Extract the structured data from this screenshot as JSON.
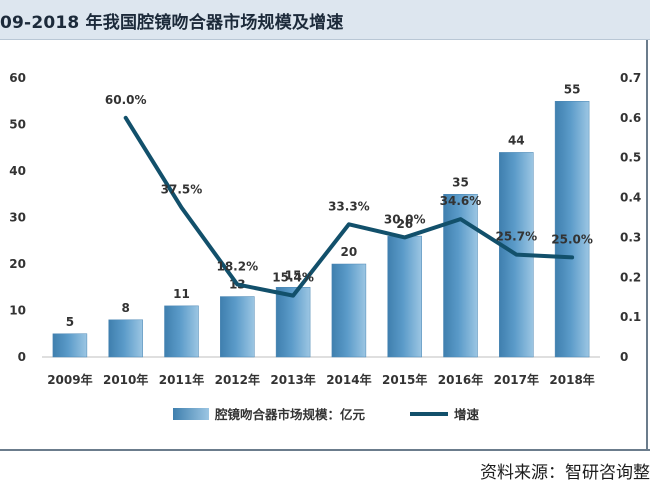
{
  "header": {
    "title": "09-2018 年我国腔镜吻合器市场规模及增速"
  },
  "footer": {
    "source": "资料来源：智研咨询整"
  },
  "colors": {
    "bar_fill": "#5b9bc9",
    "line": "#12506b",
    "axis_text": "#333333",
    "title_bg": "#dde6ef"
  },
  "chart_data": {
    "type": "bar",
    "categories": [
      "2009年",
      "2010年",
      "2011年",
      "2012年",
      "2013年",
      "2014年",
      "2015年",
      "2016年",
      "2017年",
      "2018年"
    ],
    "series": [
      {
        "name": "腔镜吻合器市场规模：亿元",
        "type": "bar",
        "axis": "left",
        "values": [
          5,
          8,
          11,
          13,
          15,
          20,
          26,
          35,
          44,
          55
        ],
        "labels": [
          "5",
          "8",
          "11",
          "13",
          "15",
          "20",
          "26",
          "35",
          "44",
          "55"
        ]
      },
      {
        "name": "增速",
        "type": "line",
        "axis": "right",
        "values": [
          null,
          0.6,
          0.375,
          0.182,
          0.154,
          0.333,
          0.3,
          0.346,
          0.257,
          0.25
        ],
        "labels": [
          "",
          "60.0%",
          "37.5%",
          "18.2%",
          "15.4%",
          "33.3%",
          "30.0%",
          "34.6%",
          "25.7%",
          "25.0%"
        ]
      }
    ],
    "y_left": {
      "min": 0,
      "max": 60,
      "ticks": [
        "0",
        "10",
        "20",
        "30",
        "40",
        "50",
        "60"
      ]
    },
    "y_right": {
      "min": 0,
      "max": 0.7,
      "ticks": [
        "0",
        "0.1",
        "0.2",
        "0.3",
        "0.4",
        "0.5",
        "0.6",
        "0.7"
      ]
    },
    "grid": false,
    "legend_position": "bottom"
  }
}
